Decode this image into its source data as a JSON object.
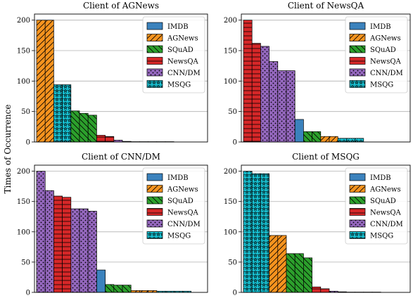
{
  "figure": {
    "ylabel": "Times of Occurrence"
  },
  "legend_entries": [
    {
      "label": "IMDB",
      "color": "#3b82bd",
      "pattern": "none"
    },
    {
      "label": "AGNews",
      "color": "#f7931e",
      "pattern": "diagonal"
    },
    {
      "label": "SQuAD",
      "color": "#2ca02c",
      "pattern": "back-diagonal"
    },
    {
      "label": "NewsQA",
      "color": "#d62728",
      "pattern": "horizontal"
    },
    {
      "label": "CNN/DM",
      "color": "#9467bd",
      "pattern": "dots"
    },
    {
      "label": "MSQG",
      "color": "#17becf",
      "pattern": "stars"
    }
  ],
  "chart_data": [
    {
      "type": "bar",
      "title": "Client of AGNews",
      "ylim": [
        0,
        210
      ],
      "yticks": [
        0,
        50,
        100,
        150,
        200
      ],
      "grid": true,
      "legend_position": "top-right",
      "bars": [
        {
          "dataset": "AGNews",
          "values": [
            200,
            200
          ]
        },
        {
          "dataset": "MSQG",
          "values": [
            94,
            94
          ]
        },
        {
          "dataset": "SQuAD",
          "values": [
            51,
            47,
            44
          ]
        },
        {
          "dataset": "NewsQA",
          "values": [
            11,
            9
          ]
        },
        {
          "dataset": "CNN/DM",
          "values": [
            3,
            1
          ]
        },
        {
          "dataset": "IMDB",
          "values": [
            0.5,
            0.5,
            0.5,
            0.5,
            0.5
          ]
        }
      ]
    },
    {
      "type": "bar",
      "title": "Client of NewsQA",
      "ylim": [
        0,
        210
      ],
      "yticks": [
        0,
        50,
        100,
        150,
        200
      ],
      "grid": true,
      "legend_position": "top-right",
      "bars": [
        {
          "dataset": "NewsQA",
          "values": [
            200,
            162
          ]
        },
        {
          "dataset": "CNN/DM",
          "values": [
            157,
            132,
            117,
            117
          ]
        },
        {
          "dataset": "IMDB",
          "values": [
            37
          ]
        },
        {
          "dataset": "SQuAD",
          "values": [
            17,
            17
          ]
        },
        {
          "dataset": "AGNews",
          "values": [
            9,
            9
          ]
        },
        {
          "dataset": "MSQG",
          "values": [
            6,
            6,
            6
          ]
        }
      ]
    },
    {
      "type": "bar",
      "title": "Client of CNN/DM",
      "ylim": [
        0,
        210
      ],
      "yticks": [
        0,
        50,
        100,
        150,
        200
      ],
      "grid": true,
      "legend_position": "top-right",
      "bars": [
        {
          "dataset": "CNN/DM",
          "values": [
            200,
            168
          ]
        },
        {
          "dataset": "NewsQA",
          "values": [
            159,
            157
          ]
        },
        {
          "dataset": "CNN/DM",
          "values": [
            138,
            138,
            134
          ]
        },
        {
          "dataset": "IMDB",
          "values": [
            37
          ]
        },
        {
          "dataset": "SQuAD",
          "values": [
            13,
            12,
            12
          ]
        },
        {
          "dataset": "AGNews",
          "values": [
            3,
            3,
            3
          ]
        },
        {
          "dataset": "MSQG",
          "values": [
            2,
            2,
            2,
            2
          ]
        }
      ]
    },
    {
      "type": "bar",
      "title": "Client of MSQG",
      "ylim": [
        0,
        210
      ],
      "yticks": [
        0,
        50,
        100,
        150,
        200
      ],
      "grid": true,
      "legend_position": "top-right",
      "bars": [
        {
          "dataset": "MSQG",
          "values": [
            200,
            196,
            196
          ]
        },
        {
          "dataset": "AGNews",
          "values": [
            94,
            94
          ]
        },
        {
          "dataset": "SQuAD",
          "values": [
            64,
            64,
            57
          ]
        },
        {
          "dataset": "NewsQA",
          "values": [
            9,
            6
          ]
        },
        {
          "dataset": "CNN/DM",
          "values": [
            2,
            1
          ]
        },
        {
          "dataset": "IMDB",
          "values": [
            0.5,
            0.5,
            0.5,
            0.5
          ]
        }
      ]
    }
  ]
}
